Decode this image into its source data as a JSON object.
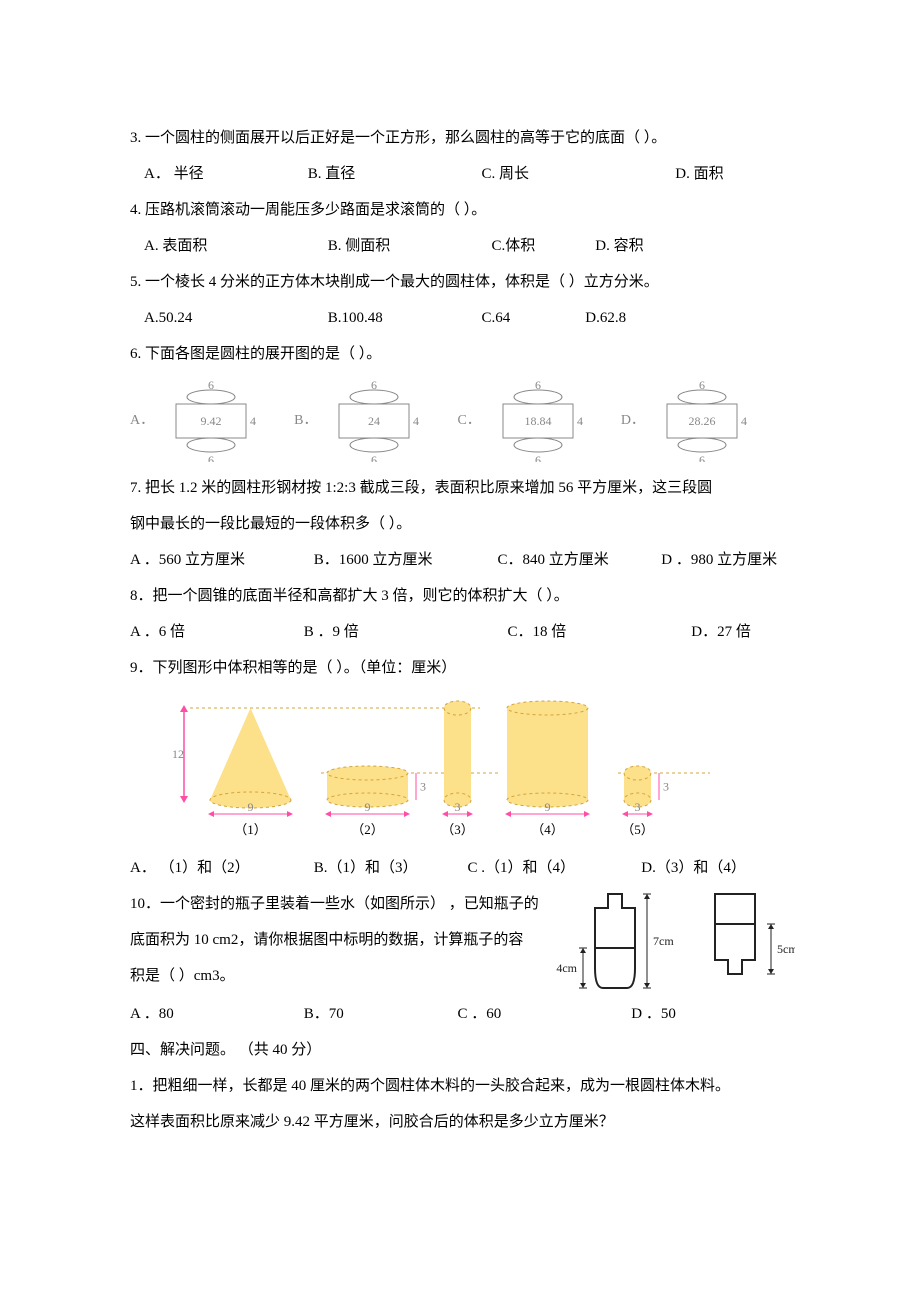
{
  "q3": {
    "text": "3. 一个圆柱的侧面展开以后正好是一个正方形，那么圆柱的高等于它的底面（            ）。",
    "A": "A．  半径",
    "B": "B.   直径",
    "C": "C.   周长",
    "D": "D. 面积"
  },
  "q4": {
    "text": "4. 压路机滚筒滚动一周能压多少路面是求滚筒的（            ）。",
    "A": "A.   表面积",
    "B": "B.   侧面积",
    "C": "C.体积",
    "D": "D.        容积"
  },
  "q5": {
    "text": "5. 一个棱长   4 分米的正方体木块削成一个最大的圆柱体，体积是（           ）立方分米。",
    "A": "A.50.24",
    "B": "B.100.48",
    "C": "C.64",
    "D": "D.62.8"
  },
  "q6": {
    "text": "6. 下面各图是圆柱的展开图的是（            ）。",
    "labels": {
      "A": "A．",
      "B": "B．",
      "C": "C．",
      "D": "D．"
    },
    "figs": {
      "stroke": "#888888",
      "stroke_width": 1,
      "font_size": 12,
      "font_color": "#888888",
      "ellipse_rx": 24,
      "ellipse_ry": 7,
      "rect_h": 34,
      "top_bottom_label": {
        "A": "6",
        "B": "6",
        "C": "6",
        "D": "6"
      },
      "side_label": "4",
      "rect_label": {
        "A": "9.42",
        "B": "24",
        "C": "18.84",
        "D": "28.26"
      },
      "rect_w": {
        "A": 70,
        "B": 70,
        "C": 70,
        "D": 70
      }
    }
  },
  "q7": {
    "line1": "7. 把长  1.2  米的圆柱形钢材按    1:2:3  截成三段，表面积比原来增加     56 平方厘米，这三段圆",
    "line2": "钢中最长的一段比最短的一段体积多（             ）。",
    "A": " A  ．560 立方厘米",
    "B": "B．1600 立方厘米",
    "C": "C．840 立方厘米",
    "D": "D ．980 立方厘米"
  },
  "q8": {
    "text": "8．把一个圆锥的底面半径和高都扩大      3 倍，则它的体积扩大（          ）。",
    "A": " A  ．6 倍",
    "B": "B  ．9 倍",
    "C": "C．18 倍",
    "D": "D．27 倍"
  },
  "q9": {
    "text": "9．下列图形中体积相等的是（          ）。（单位：厘米）",
    "fig": {
      "fill": "#fce08a",
      "dash": "3 3",
      "dash_color": "#d4a43c",
      "arrow_color": "#ff4da6",
      "label_color": "#888888",
      "height_label": "12",
      "items": [
        {
          "idx": "（1）",
          "w": 9,
          "h3": false
        },
        {
          "idx": "（2）",
          "w": 9,
          "h3": true
        },
        {
          "idx": "（3）",
          "w": 3,
          "h3": false
        },
        {
          "idx": "（4）",
          "w": 9,
          "h3": false
        },
        {
          "idx": "（5）",
          "w": 3,
          "h3": true
        }
      ]
    },
    "A": "A． （1）和（2）",
    "B": "B.（1）和（3）",
    "C": "C  .（1）和（4）",
    "D": "D.（3）和（4）"
  },
  "q10": {
    "line1": "10．一个密封的瓶子里装着一些水（如图所示）    ，已知瓶子的",
    "line2": "底面积为   10 cm2，请你根据图中标明的数据，计算瓶子的容",
    "line3": "积是（          ）cm3。",
    "A": " A  ．80",
    "B": "B．70",
    "C": "C ．60",
    "D": "D ．50",
    "fig": {
      "stroke": "#222",
      "dim_color": "#222",
      "water_fill": "#fff",
      "labels": {
        "left_water": "4cm",
        "left_total": "7cm",
        "right_water": "5cm"
      }
    }
  },
  "sec4": "四、解决问题。 （共 40 分）",
  "p1": {
    "line1": "1．把粗细一样，长都是      40 厘米的两个圆柱体木料的一头胶合起来，成为一根圆柱体木料。",
    "line2": "这样表面积比原来减少     9.42  平方厘米，问胶合后的体积是多少立方厘米？"
  }
}
